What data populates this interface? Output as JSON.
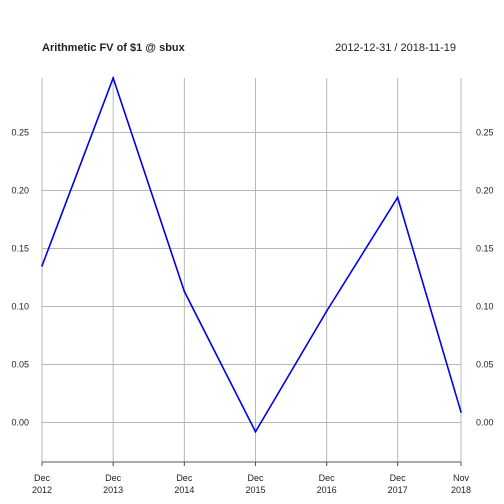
{
  "chart_data": {
    "type": "line",
    "title": "Arithmetic FV of $1 @ sbux",
    "date_range": "2012-12-31 / 2018-11-19",
    "x": [
      "2012-12-31",
      "2013-12-31",
      "2014-12-31",
      "2015-12-31",
      "2016-12-30",
      "2017-12-29",
      "2018-11-19"
    ],
    "x_ticks": [
      {
        "date": "2012-12-31",
        "month": "Dec",
        "year": "2012"
      },
      {
        "date": "2013-12-31",
        "month": "Dec",
        "year": "2013"
      },
      {
        "date": "2014-12-31",
        "month": "Dec",
        "year": "2014"
      },
      {
        "date": "2015-12-31",
        "month": "Dec",
        "year": "2015"
      },
      {
        "date": "2016-12-30",
        "month": "Dec",
        "year": "2016"
      },
      {
        "date": "2017-12-29",
        "month": "Dec",
        "year": "2017"
      },
      {
        "date": "2018-11-19",
        "month": "Nov",
        "year": "2018"
      }
    ],
    "y_ticks": [
      "0.00",
      "0.05",
      "0.10",
      "0.15",
      "0.20",
      "0.25"
    ],
    "y_tick_values": [
      0.0,
      0.05,
      0.1,
      0.15,
      0.2,
      0.25
    ],
    "series": [
      {
        "color": "#0000ee",
        "values": [
          0.135,
          0.297,
          0.113,
          -0.008,
          0.096,
          0.194,
          0.009
        ]
      }
    ],
    "ylim": [
      -0.022,
      0.297
    ],
    "grid": true,
    "xlabel": "",
    "ylabel": ""
  }
}
